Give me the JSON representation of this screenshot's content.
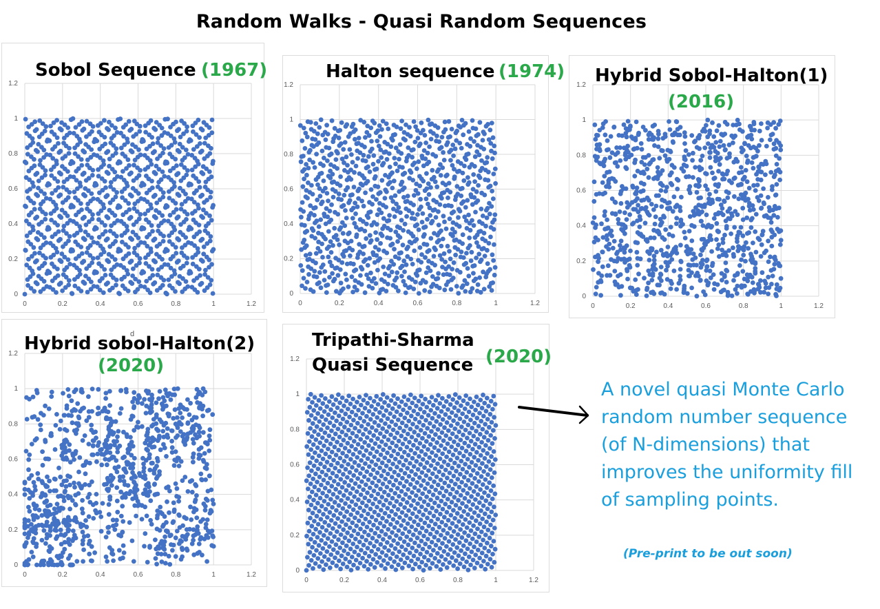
{
  "page": {
    "title": "Random Walks - Quasi Random Sequences"
  },
  "colors": {
    "point": "#4472c4",
    "year": "#2aa84a",
    "description": "#1a9fdc",
    "grid": "#d9d9d9",
    "tick": "#595959"
  },
  "description": {
    "text": "A novel quasi Monte Carlo random number sequence (of N-dimensions) that improves the uniformity fill of sampling points.",
    "note": "(Pre-print to be out soon)"
  },
  "stray_text": "d",
  "chart_data": [
    {
      "type": "scatter",
      "title": "Sobol Sequence",
      "year": "(1967)",
      "generator": "sobol",
      "n_points": 1024,
      "xlim": [
        0,
        1.2
      ],
      "ylim": [
        0,
        1.2
      ],
      "xticks": [
        "0",
        "0.2",
        "0.4",
        "0.6",
        "0.8",
        "1",
        "1.2"
      ],
      "yticks": [
        "0",
        "0.2",
        "0.4",
        "0.6",
        "0.8",
        "1",
        "1.2"
      ],
      "grid": true,
      "legend": "none"
    },
    {
      "type": "scatter",
      "title": "Halton sequence",
      "year": "(1974)",
      "generator": "halton",
      "n_points": 1000,
      "xlim": [
        0,
        1.2
      ],
      "ylim": [
        0,
        1.2
      ],
      "xticks": [
        "0",
        "0.2",
        "0.4",
        "0.6",
        "0.8",
        "1",
        "1.2"
      ],
      "yticks": [
        "0",
        "0.2",
        "0.4",
        "0.6",
        "0.8",
        "1",
        "1.2"
      ],
      "grid": true,
      "legend": "none"
    },
    {
      "type": "scatter",
      "title": "Hybrid Sobol-Halton(1)",
      "year": "(2016)",
      "generator": "hybrid1",
      "n_points": 1000,
      "xlim": [
        0,
        1.2
      ],
      "ylim": [
        0,
        1.2
      ],
      "xticks": [
        "0",
        "0.2",
        "0.4",
        "0.6",
        "0.8",
        "1",
        "1.2"
      ],
      "yticks": [
        "0",
        "0.2",
        "0.4",
        "0.6",
        "0.8",
        "1",
        "1.2"
      ],
      "grid": true,
      "legend": "none"
    },
    {
      "type": "scatter",
      "title": "Hybrid sobol-Halton(2)",
      "year": "(2020)",
      "generator": "hybrid2",
      "n_points": 1000,
      "xlim": [
        0,
        1.2
      ],
      "ylim": [
        0,
        1.2
      ],
      "xticks": [
        "0",
        "0.2",
        "0.4",
        "0.6",
        "0.8",
        "1",
        "1.2"
      ],
      "yticks": [
        "0",
        "0.2",
        "0.4",
        "0.6",
        "0.8",
        "1",
        "1.2"
      ],
      "grid": true,
      "legend": "none"
    },
    {
      "type": "scatter",
      "title": "Tripathi-Sharma Quasi Sequence",
      "title_lines": [
        "Tripathi-Sharma",
        "Quasi Sequence"
      ],
      "year": "(2020)",
      "generator": "lattice",
      "n_points": 1200,
      "xlim": [
        0,
        1.2
      ],
      "ylim": [
        0,
        1.2
      ],
      "xticks": [
        "0",
        "0.2",
        "0.4",
        "0.6",
        "0.8",
        "1",
        "1.2"
      ],
      "yticks": [
        "0",
        "0.2",
        "0.4",
        "0.6",
        "0.8",
        "1",
        "1.2"
      ],
      "grid": true,
      "legend": "none"
    }
  ]
}
